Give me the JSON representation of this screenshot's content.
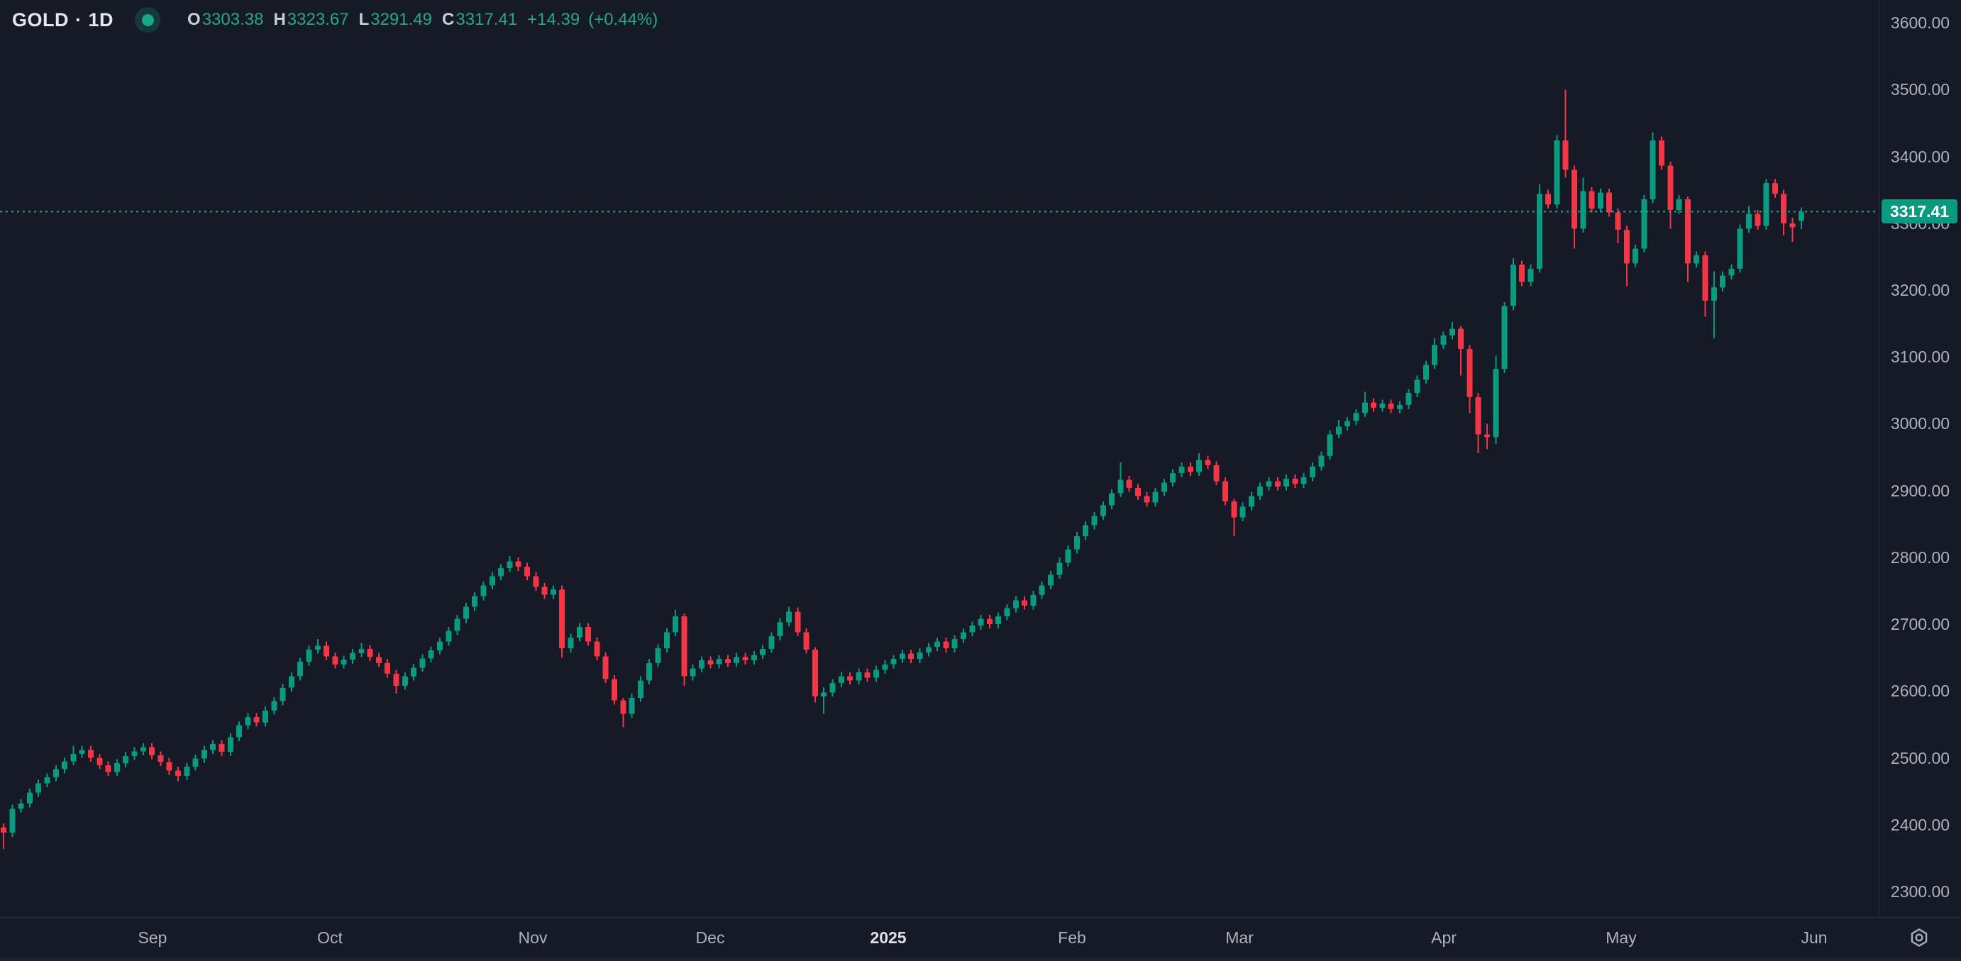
{
  "header": {
    "symbol": "GOLD",
    "separator": "·",
    "interval": "1D",
    "open_label": "O",
    "open": "3303.38",
    "high_label": "H",
    "high": "3323.67",
    "low_label": "L",
    "low": "3291.49",
    "close_label": "C",
    "close": "3317.41",
    "change": "+14.39",
    "change_pct": "(+0.44%)"
  },
  "colors": {
    "background": "#151a26",
    "up": "#0a9a80",
    "down": "#f23645",
    "axis_text": "#adb1bc",
    "separator": "#2a3040",
    "badge_bg": "#0a9a81",
    "badge_text": "#ffffff",
    "price_line": "#2aa48c",
    "legend_value": "#2aa48c",
    "status_dot": "#17a68c"
  },
  "price_axis": {
    "badge": {
      "text": "3317.41",
      "price": 3317.41
    }
  },
  "time_axis": {
    "settings_icon": "gear-icon"
  },
  "chart_data": {
    "type": "candlestick",
    "symbol": "GOLD",
    "interval": "1D",
    "title": "",
    "xlabel": "",
    "ylabel": "",
    "grid": false,
    "legend_position": "top-left",
    "ylim": [
      2262,
      3634
    ],
    "x_start": 5,
    "x_step": 12.3,
    "candle_width": 8,
    "wick_width": 2,
    "last_price": 3317.41,
    "y_ticks": [
      "3600.00",
      "3500.00",
      "3400.00",
      "3300.00",
      "3200.00",
      "3100.00",
      "3000.00",
      "2900.00",
      "2800.00",
      "2700.00",
      "2600.00",
      "2500.00",
      "2400.00",
      "2300.00"
    ],
    "x_ticks": [
      {
        "text": "Sep",
        "x": 215,
        "emph": false
      },
      {
        "text": "Oct",
        "x": 465,
        "emph": false
      },
      {
        "text": "Nov",
        "x": 751,
        "emph": false
      },
      {
        "text": "Dec",
        "x": 1001,
        "emph": false
      },
      {
        "text": "2025",
        "x": 1252,
        "emph": true
      },
      {
        "text": "Feb",
        "x": 1511,
        "emph": false
      },
      {
        "text": "Mar",
        "x": 1747,
        "emph": false
      },
      {
        "text": "Apr",
        "x": 2035,
        "emph": false
      },
      {
        "text": "May",
        "x": 2285,
        "emph": false
      },
      {
        "text": "Jun",
        "x": 2557,
        "emph": false
      }
    ],
    "ohlc": [
      [
        2396,
        2402,
        2364,
        2388
      ],
      [
        2388,
        2430,
        2382,
        2424
      ],
      [
        2424,
        2438,
        2418,
        2432
      ],
      [
        2432,
        2454,
        2426,
        2448
      ],
      [
        2448,
        2468,
        2442,
        2462
      ],
      [
        2462,
        2477,
        2456,
        2471
      ],
      [
        2471,
        2489,
        2465,
        2483
      ],
      [
        2483,
        2501,
        2477,
        2495
      ],
      [
        2495,
        2518,
        2489,
        2506
      ],
      [
        2506,
        2518,
        2500,
        2512
      ],
      [
        2512,
        2518,
        2494,
        2500
      ],
      [
        2500,
        2506,
        2483,
        2489
      ],
      [
        2489,
        2495,
        2473,
        2479
      ],
      [
        2479,
        2498,
        2473,
        2492
      ],
      [
        2492,
        2509,
        2486,
        2503
      ],
      [
        2503,
        2516,
        2497,
        2510
      ],
      [
        2510,
        2522,
        2504,
        2516
      ],
      [
        2516,
        2522,
        2498,
        2504
      ],
      [
        2504,
        2510,
        2488,
        2494
      ],
      [
        2494,
        2500,
        2475,
        2481
      ],
      [
        2481,
        2487,
        2465,
        2473
      ],
      [
        2473,
        2493,
        2467,
        2487
      ],
      [
        2487,
        2505,
        2481,
        2499
      ],
      [
        2499,
        2518,
        2493,
        2512
      ],
      [
        2512,
        2527,
        2506,
        2521
      ],
      [
        2521,
        2527,
        2503,
        2509
      ],
      [
        2509,
        2537,
        2503,
        2531
      ],
      [
        2531,
        2555,
        2525,
        2549
      ],
      [
        2549,
        2567,
        2543,
        2561
      ],
      [
        2561,
        2567,
        2547,
        2553
      ],
      [
        2553,
        2577,
        2547,
        2571
      ],
      [
        2571,
        2591,
        2565,
        2585
      ],
      [
        2585,
        2611,
        2579,
        2605
      ],
      [
        2605,
        2628,
        2599,
        2622
      ],
      [
        2622,
        2650,
        2616,
        2644
      ],
      [
        2644,
        2668,
        2638,
        2662
      ],
      [
        2662,
        2678,
        2656,
        2668
      ],
      [
        2668,
        2674,
        2646,
        2652
      ],
      [
        2652,
        2658,
        2634,
        2640
      ],
      [
        2640,
        2653,
        2634,
        2647
      ],
      [
        2647,
        2663,
        2641,
        2657
      ],
      [
        2657,
        2672,
        2651,
        2663
      ],
      [
        2663,
        2669,
        2645,
        2651
      ],
      [
        2651,
        2657,
        2636,
        2642
      ],
      [
        2642,
        2648,
        2620,
        2626
      ],
      [
        2626,
        2632,
        2596,
        2608
      ],
      [
        2608,
        2628,
        2602,
        2622
      ],
      [
        2622,
        2641,
        2616,
        2635
      ],
      [
        2635,
        2655,
        2629,
        2649
      ],
      [
        2649,
        2667,
        2643,
        2661
      ],
      [
        2661,
        2680,
        2655,
        2674
      ],
      [
        2674,
        2696,
        2668,
        2690
      ],
      [
        2690,
        2714,
        2684,
        2708
      ],
      [
        2708,
        2732,
        2702,
        2726
      ],
      [
        2726,
        2748,
        2720,
        2742
      ],
      [
        2742,
        2764,
        2736,
        2758
      ],
      [
        2758,
        2778,
        2752,
        2772
      ],
      [
        2772,
        2790,
        2766,
        2784
      ],
      [
        2784,
        2802,
        2778,
        2794
      ],
      [
        2794,
        2800,
        2780,
        2786
      ],
      [
        2786,
        2792,
        2766,
        2772
      ],
      [
        2772,
        2778,
        2750,
        2756
      ],
      [
        2756,
        2762,
        2738,
        2744
      ],
      [
        2744,
        2758,
        2738,
        2752
      ],
      [
        2752,
        2758,
        2650,
        2664
      ],
      [
        2664,
        2686,
        2658,
        2680
      ],
      [
        2680,
        2702,
        2674,
        2696
      ],
      [
        2696,
        2702,
        2668,
        2674
      ],
      [
        2674,
        2680,
        2646,
        2652
      ],
      [
        2652,
        2658,
        2612,
        2618
      ],
      [
        2618,
        2624,
        2580,
        2586
      ],
      [
        2586,
        2590,
        2546,
        2566
      ],
      [
        2566,
        2596,
        2560,
        2590
      ],
      [
        2590,
        2622,
        2584,
        2616
      ],
      [
        2616,
        2648,
        2610,
        2642
      ],
      [
        2642,
        2670,
        2636,
        2664
      ],
      [
        2664,
        2694,
        2658,
        2688
      ],
      [
        2688,
        2722,
        2682,
        2712
      ],
      [
        2712,
        2716,
        2608,
        2622
      ],
      [
        2622,
        2640,
        2616,
        2634
      ],
      [
        2634,
        2652,
        2628,
        2646
      ],
      [
        2646,
        2652,
        2634,
        2640
      ],
      [
        2640,
        2654,
        2634,
        2648
      ],
      [
        2648,
        2654,
        2636,
        2642
      ],
      [
        2642,
        2657,
        2636,
        2651
      ],
      [
        2651,
        2657,
        2640,
        2646
      ],
      [
        2646,
        2660,
        2640,
        2654
      ],
      [
        2654,
        2669,
        2648,
        2663
      ],
      [
        2663,
        2688,
        2657,
        2682
      ],
      [
        2682,
        2709,
        2676,
        2703
      ],
      [
        2703,
        2726,
        2697,
        2719
      ],
      [
        2719,
        2725,
        2682,
        2688
      ],
      [
        2688,
        2694,
        2656,
        2662
      ],
      [
        2662,
        2666,
        2583,
        2592
      ],
      [
        2592,
        2606,
        2566,
        2598
      ],
      [
        2598,
        2618,
        2592,
        2612
      ],
      [
        2612,
        2628,
        2606,
        2622
      ],
      [
        2622,
        2628,
        2610,
        2616
      ],
      [
        2616,
        2634,
        2610,
        2628
      ],
      [
        2628,
        2634,
        2614,
        2620
      ],
      [
        2620,
        2638,
        2614,
        2632
      ],
      [
        2632,
        2646,
        2626,
        2640
      ],
      [
        2640,
        2654,
        2634,
        2648
      ],
      [
        2648,
        2662,
        2642,
        2656
      ],
      [
        2656,
        2662,
        2642,
        2648
      ],
      [
        2648,
        2664,
        2642,
        2658
      ],
      [
        2658,
        2672,
        2652,
        2666
      ],
      [
        2666,
        2680,
        2660,
        2674
      ],
      [
        2674,
        2680,
        2658,
        2664
      ],
      [
        2664,
        2684,
        2658,
        2678
      ],
      [
        2678,
        2694,
        2672,
        2688
      ],
      [
        2688,
        2704,
        2682,
        2698
      ],
      [
        2698,
        2714,
        2692,
        2708
      ],
      [
        2708,
        2714,
        2694,
        2700
      ],
      [
        2700,
        2718,
        2694,
        2712
      ],
      [
        2712,
        2730,
        2706,
        2724
      ],
      [
        2724,
        2742,
        2718,
        2736
      ],
      [
        2736,
        2742,
        2722,
        2728
      ],
      [
        2728,
        2750,
        2722,
        2744
      ],
      [
        2744,
        2764,
        2738,
        2758
      ],
      [
        2758,
        2780,
        2752,
        2774
      ],
      [
        2774,
        2800,
        2768,
        2792
      ],
      [
        2792,
        2818,
        2786,
        2812
      ],
      [
        2812,
        2838,
        2806,
        2832
      ],
      [
        2832,
        2854,
        2826,
        2848
      ],
      [
        2848,
        2868,
        2842,
        2862
      ],
      [
        2862,
        2884,
        2856,
        2878
      ],
      [
        2878,
        2902,
        2872,
        2896
      ],
      [
        2896,
        2942,
        2890,
        2916
      ],
      [
        2916,
        2922,
        2898,
        2904
      ],
      [
        2904,
        2910,
        2886,
        2892
      ],
      [
        2892,
        2898,
        2876,
        2882
      ],
      [
        2882,
        2904,
        2876,
        2898
      ],
      [
        2898,
        2918,
        2892,
        2912
      ],
      [
        2912,
        2932,
        2906,
        2926
      ],
      [
        2926,
        2942,
        2920,
        2936
      ],
      [
        2936,
        2942,
        2922,
        2928
      ],
      [
        2928,
        2956,
        2922,
        2946
      ],
      [
        2946,
        2952,
        2932,
        2938
      ],
      [
        2938,
        2944,
        2908,
        2914
      ],
      [
        2914,
        2920,
        2878,
        2884
      ],
      [
        2884,
        2888,
        2832,
        2860
      ],
      [
        2860,
        2882,
        2854,
        2876
      ],
      [
        2876,
        2898,
        2870,
        2892
      ],
      [
        2892,
        2912,
        2886,
        2906
      ],
      [
        2906,
        2920,
        2900,
        2914
      ],
      [
        2914,
        2920,
        2900,
        2906
      ],
      [
        2906,
        2924,
        2900,
        2918
      ],
      [
        2918,
        2924,
        2904,
        2910
      ],
      [
        2910,
        2926,
        2904,
        2920
      ],
      [
        2920,
        2942,
        2914,
        2936
      ],
      [
        2936,
        2958,
        2930,
        2952
      ],
      [
        2952,
        2990,
        2946,
        2984
      ],
      [
        2984,
        3006,
        2978,
        2996
      ],
      [
        2996,
        3010,
        2990,
        3004
      ],
      [
        3004,
        3022,
        2998,
        3016
      ],
      [
        3016,
        3048,
        3010,
        3032
      ],
      [
        3032,
        3038,
        3018,
        3024
      ],
      [
        3024,
        3036,
        3018,
        3030
      ],
      [
        3030,
        3036,
        3016,
        3022
      ],
      [
        3022,
        3034,
        3016,
        3028
      ],
      [
        3028,
        3052,
        3022,
        3046
      ],
      [
        3046,
        3072,
        3040,
        3066
      ],
      [
        3066,
        3094,
        3060,
        3088
      ],
      [
        3088,
        3128,
        3082,
        3118
      ],
      [
        3118,
        3138,
        3112,
        3132
      ],
      [
        3132,
        3152,
        3126,
        3142
      ],
      [
        3142,
        3146,
        3072,
        3112
      ],
      [
        3112,
        3118,
        3016,
        3040
      ],
      [
        3040,
        3046,
        2956,
        2984
      ],
      [
        2984,
        3000,
        2962,
        2980
      ],
      [
        2980,
        3102,
        2970,
        3082
      ],
      [
        3082,
        3182,
        3076,
        3176
      ],
      [
        3176,
        3248,
        3170,
        3238
      ],
      [
        3238,
        3244,
        3206,
        3212
      ],
      [
        3212,
        3238,
        3206,
        3232
      ],
      [
        3232,
        3358,
        3226,
        3344
      ],
      [
        3344,
        3350,
        3322,
        3328
      ],
      [
        3328,
        3432,
        3322,
        3424
      ],
      [
        3424,
        3500,
        3368,
        3380
      ],
      [
        3380,
        3386,
        3262,
        3292
      ],
      [
        3292,
        3368,
        3286,
        3348
      ],
      [
        3348,
        3354,
        3316,
        3322
      ],
      [
        3322,
        3352,
        3316,
        3346
      ],
      [
        3346,
        3352,
        3310,
        3316
      ],
      [
        3316,
        3322,
        3270,
        3290
      ],
      [
        3290,
        3296,
        3206,
        3240
      ],
      [
        3240,
        3268,
        3234,
        3262
      ],
      [
        3262,
        3342,
        3256,
        3336
      ],
      [
        3336,
        3436,
        3330,
        3424
      ],
      [
        3424,
        3430,
        3380,
        3386
      ],
      [
        3386,
        3392,
        3292,
        3320
      ],
      [
        3320,
        3342,
        3314,
        3336
      ],
      [
        3336,
        3340,
        3212,
        3240
      ],
      [
        3240,
        3258,
        3234,
        3252
      ],
      [
        3252,
        3258,
        3160,
        3184
      ],
      [
        3184,
        3228,
        3128,
        3204
      ],
      [
        3204,
        3228,
        3198,
        3222
      ],
      [
        3222,
        3238,
        3216,
        3232
      ],
      [
        3232,
        3298,
        3226,
        3292
      ],
      [
        3292,
        3326,
        3286,
        3314
      ],
      [
        3314,
        3320,
        3290,
        3296
      ],
      [
        3296,
        3366,
        3290,
        3360
      ],
      [
        3360,
        3366,
        3338,
        3344
      ],
      [
        3344,
        3350,
        3282,
        3300
      ],
      [
        3300,
        3308,
        3272,
        3294
      ],
      [
        3303.38,
        3323.67,
        3291.49,
        3317.41
      ]
    ]
  }
}
